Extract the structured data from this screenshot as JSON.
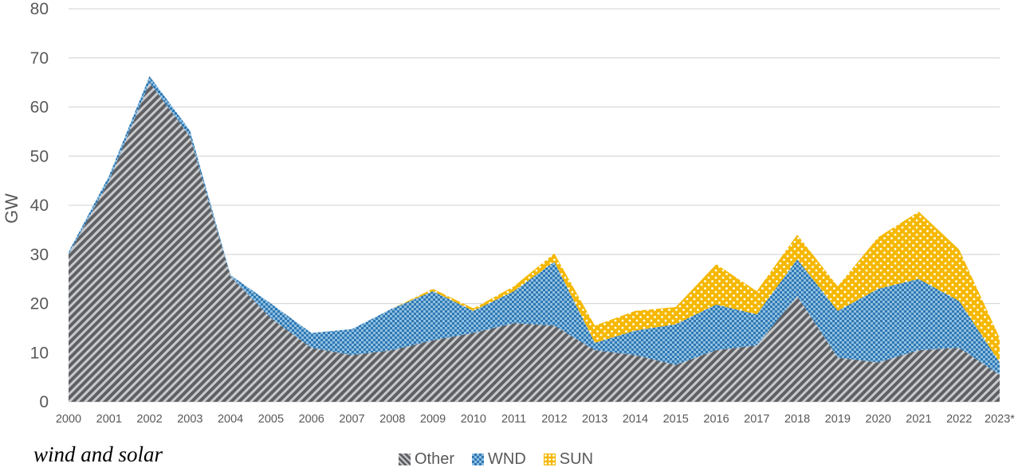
{
  "chart_data": {
    "type": "area",
    "stacked": true,
    "ylabel": "GW",
    "xlabel": "",
    "ylim": [
      0,
      80
    ],
    "yticks": [
      0,
      10,
      20,
      30,
      40,
      50,
      60,
      70,
      80
    ],
    "grid": true,
    "legend_position": "bottom",
    "categories": [
      "2000",
      "2001",
      "2002",
      "2003",
      "2004",
      "2005",
      "2006",
      "2007",
      "2008",
      "2009",
      "2010",
      "2011",
      "2012",
      "2013",
      "2014",
      "2015",
      "2016",
      "2017",
      "2018",
      "2019",
      "2020",
      "2021",
      "2022",
      "2023*"
    ],
    "series": [
      {
        "name": "Other",
        "color": "#6d6e71",
        "pattern": "diagonal-hatch",
        "values": [
          30,
          45,
          65,
          54,
          25.5,
          17,
          11,
          9.5,
          10.5,
          12.5,
          14,
          16,
          15.5,
          10.5,
          9.5,
          7.5,
          10.5,
          11.5,
          21.5,
          9,
          8,
          10.5,
          11,
          5.5
        ]
      },
      {
        "name": "WND",
        "color": "#3a7fb8",
        "pattern": "checker",
        "values": [
          0.5,
          1,
          1.3,
          1.2,
          0.3,
          3,
          3,
          5.3,
          8.5,
          10,
          4.5,
          6.5,
          13,
          1.5,
          5,
          8.3,
          9.3,
          6.3,
          7.5,
          9.5,
          15,
          14.5,
          9.5,
          2.5
        ]
      },
      {
        "name": "SUN",
        "color": "#f5b800",
        "pattern": "dots",
        "values": [
          0,
          0,
          0,
          0,
          0,
          0,
          0,
          0,
          0,
          0.5,
          0.5,
          1,
          1.7,
          3.5,
          4,
          3.5,
          8.2,
          4.7,
          5,
          5,
          10.5,
          13.7,
          10.5,
          5
        ]
      }
    ]
  },
  "caption": "wind and solar",
  "legend": [
    {
      "name": "Other",
      "color": "#6d6e71"
    },
    {
      "name": "WND",
      "color": "#3a7fb8"
    },
    {
      "name": "SUN",
      "color": "#f5b800"
    }
  ]
}
